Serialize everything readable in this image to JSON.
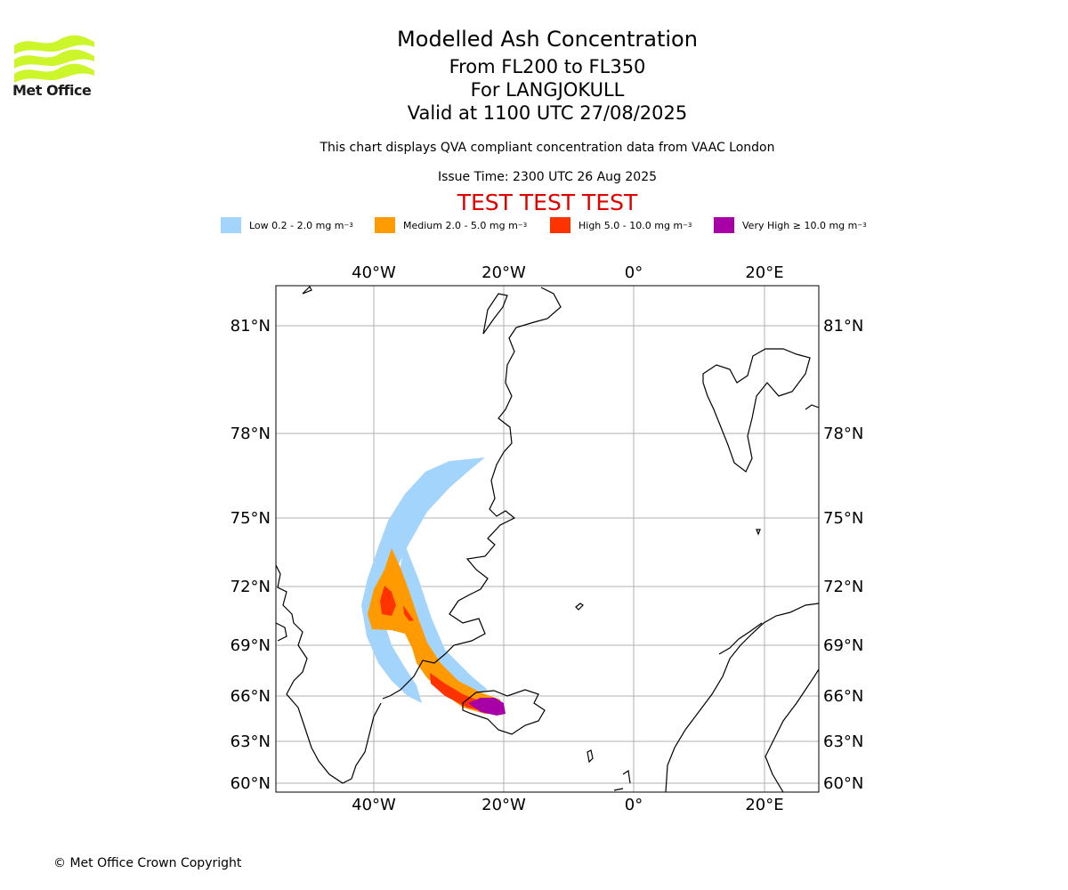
{
  "logo": {
    "text": "Met Office"
  },
  "header": {
    "title": "Modelled Ash Concentration",
    "levels": "From FL200 to FL350",
    "volcano": "For LANGJOKULL",
    "valid": "Valid at 1100 UTC 27/08/2025",
    "disclaimer": "This chart displays QVA compliant concentration data from VAAC London",
    "issue_time": "Issue Time: 2300 UTC 26 Aug 2025",
    "test_banner": "TEST TEST TEST"
  },
  "legend": [
    {
      "label": "Low 0.2 - 2.0 mg m",
      "unit_exp": "−3",
      "color": "#a3d4fb"
    },
    {
      "label": "Medium 2.0 - 5.0 mg m",
      "unit_exp": "−3",
      "color": "#ff9a00"
    },
    {
      "label": "High 5.0 - 10.0 mg m",
      "unit_exp": "−3",
      "color": "#ff3300"
    },
    {
      "label": "Very High ≥ 10.0 mg m",
      "unit_exp": "−3",
      "color": "#a600a6"
    }
  ],
  "map": {
    "lon_labels": [
      "40°W",
      "20°W",
      "0°",
      "20°E"
    ],
    "lat_labels": [
      "81°N",
      "78°N",
      "75°N",
      "72°N",
      "69°N",
      "66°N",
      "63°N",
      "60°N"
    ],
    "grid_color": "#b0b0b0",
    "coast_color": "#000000"
  },
  "footer": {
    "copyright": "© Met Office Crown Copyright"
  }
}
